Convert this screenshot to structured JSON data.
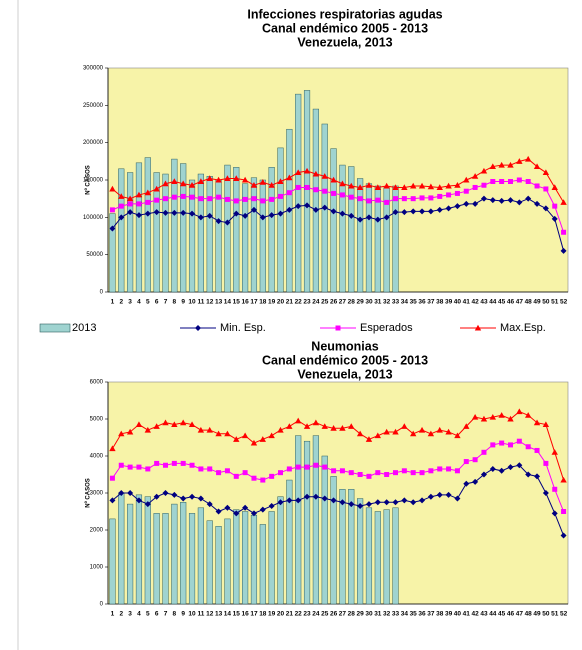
{
  "chart_data": [
    {
      "type": "bar-line",
      "title": [
        "Infecciones respiratorias agudas",
        "Canal endémico 2005 - 2013",
        "Venezuela, 2013"
      ],
      "y_label": "Nº CASOS",
      "categories": [
        "1",
        "2",
        "3",
        "4",
        "5",
        "6",
        "7",
        "8",
        "9",
        "10",
        "11",
        "12",
        "13",
        "14",
        "15",
        "16",
        "17",
        "18",
        "19",
        "20",
        "21",
        "22",
        "23",
        "24",
        "25",
        "26",
        "27",
        "28",
        "29",
        "30",
        "31",
        "32",
        "33",
        "34",
        "35",
        "36",
        "37",
        "38",
        "39",
        "40",
        "41",
        "42",
        "43",
        "44",
        "45",
        "46",
        "47",
        "48",
        "49",
        "50",
        "51",
        "52"
      ],
      "ylim": [
        0,
        300000
      ],
      "yticks": [
        0,
        50000,
        100000,
        150000,
        200000,
        250000,
        300000
      ],
      "background": "#f7f3a8",
      "legend": "bottom",
      "series": [
        {
          "name": "2013",
          "kind": "bar",
          "color": "#9fd3d0",
          "values": [
            105000,
            165000,
            160000,
            173000,
            180000,
            160000,
            158000,
            178000,
            172000,
            150000,
            158000,
            155000,
            150000,
            170000,
            167000,
            145000,
            153000,
            150000,
            167000,
            193000,
            218000,
            265000,
            270000,
            245000,
            225000,
            192000,
            170000,
            168000,
            152000,
            145000,
            142000,
            140000,
            142000,
            null,
            null,
            null,
            null,
            null,
            null,
            null,
            null,
            null,
            null,
            null,
            null,
            null,
            null,
            null,
            null,
            null,
            null,
            null
          ]
        },
        {
          "name": "Min. Esp.",
          "kind": "line",
          "marker": "diamond",
          "color": "#000080",
          "values": [
            85000,
            100000,
            107000,
            103000,
            105000,
            107000,
            106000,
            106000,
            106000,
            105000,
            100000,
            102000,
            95000,
            93000,
            105000,
            102000,
            110000,
            100000,
            103000,
            105000,
            110000,
            115000,
            116000,
            110000,
            113000,
            108000,
            105000,
            102000,
            97000,
            100000,
            97000,
            100000,
            107000,
            107000,
            108000,
            108000,
            108000,
            110000,
            112000,
            115000,
            118000,
            118000,
            125000,
            123000,
            122000,
            123000,
            120000,
            125000,
            118000,
            112000,
            98000,
            55000
          ]
        },
        {
          "name": "Esperados",
          "kind": "line",
          "marker": "square",
          "color": "#ff00ff",
          "values": [
            110000,
            115000,
            118000,
            118000,
            120000,
            123000,
            125000,
            127000,
            128000,
            127000,
            125000,
            125000,
            127000,
            124000,
            122000,
            124000,
            125000,
            122000,
            124000,
            128000,
            133000,
            140000,
            140000,
            137000,
            135000,
            132000,
            130000,
            127000,
            125000,
            122000,
            123000,
            120000,
            125000,
            125000,
            125000,
            126000,
            126000,
            128000,
            130000,
            132000,
            135000,
            140000,
            143000,
            148000,
            148000,
            148000,
            150000,
            148000,
            142000,
            138000,
            115000,
            80000
          ]
        },
        {
          "name": "Max.Esp.",
          "kind": "line",
          "marker": "triangle",
          "color": "#ff0000",
          "values": [
            138000,
            128000,
            125000,
            130000,
            133000,
            138000,
            145000,
            148000,
            145000,
            143000,
            148000,
            152000,
            150000,
            152000,
            152000,
            150000,
            143000,
            147000,
            143000,
            148000,
            153000,
            160000,
            162000,
            158000,
            155000,
            150000,
            145000,
            142000,
            140000,
            143000,
            140000,
            142000,
            140000,
            140000,
            142000,
            142000,
            141000,
            140000,
            142000,
            143000,
            150000,
            155000,
            162000,
            168000,
            170000,
            170000,
            175000,
            178000,
            168000,
            160000,
            140000,
            120000
          ]
        }
      ]
    },
    {
      "type": "bar-line",
      "title": [
        "Neumonias",
        "Canal endémico 2005 - 2013",
        "Venezuela, 2013"
      ],
      "y_label": "Nº CASOS",
      "categories": [
        "1",
        "2",
        "3",
        "4",
        "5",
        "6",
        "7",
        "8",
        "9",
        "10",
        "11",
        "12",
        "13",
        "14",
        "15",
        "16",
        "17",
        "18",
        "19",
        "20",
        "21",
        "22",
        "23",
        "24",
        "25",
        "26",
        "27",
        "28",
        "29",
        "30",
        "31",
        "32",
        "33",
        "34",
        "35",
        "36",
        "37",
        "38",
        "39",
        "40",
        "41",
        "42",
        "43",
        "44",
        "45",
        "46",
        "47",
        "48",
        "49",
        "50",
        "51",
        "52"
      ],
      "ylim": [
        0,
        6000
      ],
      "yticks": [
        0,
        1000,
        2000,
        3000,
        4000,
        5000,
        6000
      ],
      "background": "#f7f3a8",
      "series": [
        {
          "kind": "bar",
          "color": "#9fd3d0",
          "values": [
            2300,
            3000,
            2700,
            2950,
            2900,
            2450,
            2450,
            2700,
            2750,
            2450,
            2600,
            2250,
            2100,
            2300,
            2550,
            2500,
            2400,
            2150,
            2500,
            2900,
            3350,
            4550,
            4400,
            4550,
            4000,
            3450,
            3100,
            3100,
            2850,
            2600,
            2500,
            2550,
            2600,
            null,
            null,
            null,
            null,
            null,
            null,
            null,
            null,
            null,
            null,
            null,
            null,
            null,
            null,
            null,
            null,
            null,
            null,
            null
          ]
        },
        {
          "kind": "line",
          "marker": "diamond",
          "color": "#000080",
          "values": [
            2800,
            3000,
            3000,
            2800,
            2700,
            2900,
            3000,
            2950,
            2850,
            2900,
            2850,
            2700,
            2500,
            2600,
            2450,
            2600,
            2450,
            2550,
            2650,
            2750,
            2800,
            2800,
            2900,
            2900,
            2850,
            2800,
            2750,
            2700,
            2650,
            2700,
            2750,
            2750,
            2750,
            2800,
            2750,
            2800,
            2900,
            2950,
            2950,
            2850,
            3250,
            3300,
            3500,
            3650,
            3600,
            3700,
            3750,
            3500,
            3450,
            3000,
            2450,
            1850
          ]
        },
        {
          "kind": "line",
          "marker": "square",
          "color": "#ff00ff",
          "values": [
            3400,
            3750,
            3700,
            3700,
            3650,
            3800,
            3750,
            3800,
            3800,
            3750,
            3650,
            3650,
            3550,
            3600,
            3450,
            3550,
            3400,
            3350,
            3450,
            3550,
            3650,
            3700,
            3700,
            3750,
            3700,
            3600,
            3600,
            3550,
            3500,
            3450,
            3550,
            3500,
            3550,
            3600,
            3550,
            3550,
            3600,
            3650,
            3650,
            3600,
            3850,
            3900,
            4100,
            4300,
            4350,
            4300,
            4400,
            4250,
            4150,
            3800,
            3100,
            2500
          ]
        },
        {
          "kind": "line",
          "marker": "triangle",
          "color": "#ff0000",
          "values": [
            4200,
            4600,
            4650,
            4850,
            4700,
            4800,
            4900,
            4850,
            4900,
            4850,
            4700,
            4700,
            4600,
            4600,
            4450,
            4550,
            4350,
            4450,
            4550,
            4700,
            4800,
            4950,
            4800,
            4900,
            4800,
            4750,
            4750,
            4800,
            4600,
            4450,
            4550,
            4650,
            4650,
            4800,
            4600,
            4700,
            4600,
            4700,
            4650,
            4550,
            4800,
            5050,
            5000,
            5050,
            5100,
            5000,
            5200,
            5100,
            4900,
            4850,
            4100,
            3350
          ]
        }
      ]
    }
  ]
}
